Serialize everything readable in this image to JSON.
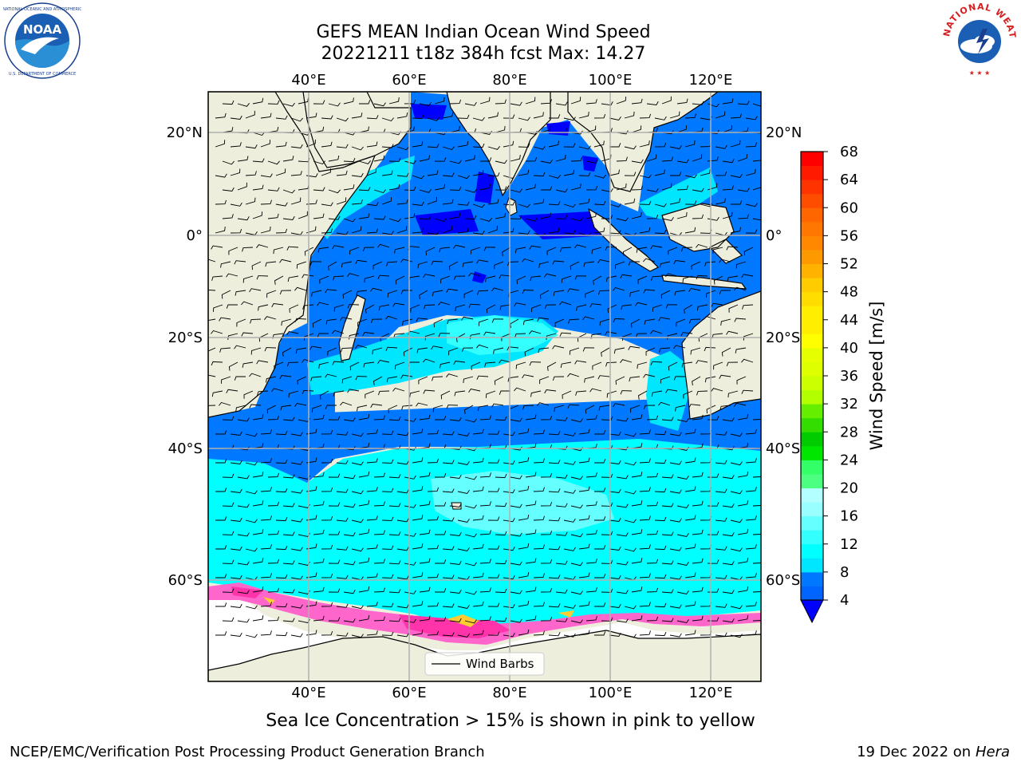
{
  "header": {
    "title_line1": "GEFS MEAN Indian Ocean Wind Speed",
    "title_line2": "20221211 t18z 384h fcst   Max: 14.27"
  },
  "logos": {
    "left": {
      "text": "NOAA",
      "ring_text": "NATIONAL OCEANIC AND ATMOSPHERIC ADMINISTRATION · U.S. DEPARTMENT OF COMMERCE",
      "icon": "noaa-logo"
    },
    "right": {
      "ring_text": "NATIONAL WEATHER SERVICE",
      "icon": "nws-logo"
    }
  },
  "map": {
    "lon_ticks": [
      "40°E",
      "60°E",
      "80°E",
      "100°E",
      "120°E"
    ],
    "lat_ticks": [
      "20°N",
      "0°",
      "20°S",
      "40°S",
      "60°S"
    ],
    "legend_label": "Wind Barbs",
    "colors": {
      "land": "#eeeedd",
      "sea_ice_white": "#ffffff",
      "sea_ice_pink": "#ff66cc",
      "sea_ice_magenta": "#ff33aa",
      "sea_ice_yellow": "#ffcc33",
      "grid": "#b0b0b0"
    }
  },
  "colorbar": {
    "label": "Wind Speed [m/s]",
    "ticks": [
      "4",
      "8",
      "12",
      "16",
      "20",
      "24",
      "28",
      "32",
      "36",
      "40",
      "44",
      "48",
      "52",
      "56",
      "60",
      "64",
      "68"
    ],
    "bins": [
      {
        "from": 4,
        "to": 6,
        "color": "#0064ff"
      },
      {
        "from": 6,
        "to": 8,
        "color": "#0078ff"
      },
      {
        "from": 8,
        "to": 10,
        "color": "#00e6ff"
      },
      {
        "from": 10,
        "to": 12,
        "color": "#00ffff"
      },
      {
        "from": 12,
        "to": 14,
        "color": "#33ffff"
      },
      {
        "from": 14,
        "to": 16,
        "color": "#66ffff"
      },
      {
        "from": 16,
        "to": 18,
        "color": "#99ffff"
      },
      {
        "from": 18,
        "to": 20,
        "color": "#b3ffff"
      },
      {
        "from": 20,
        "to": 22,
        "color": "#4cff80"
      },
      {
        "from": 22,
        "to": 24,
        "color": "#33ff66"
      },
      {
        "from": 24,
        "to": 26,
        "color": "#00e600"
      },
      {
        "from": 26,
        "to": 28,
        "color": "#00cc00"
      },
      {
        "from": 28,
        "to": 30,
        "color": "#33dd00"
      },
      {
        "from": 30,
        "to": 32,
        "color": "#66ee00"
      },
      {
        "from": 32,
        "to": 34,
        "color": "#b3ff00"
      },
      {
        "from": 34,
        "to": 36,
        "color": "#ccff00"
      },
      {
        "from": 36,
        "to": 38,
        "color": "#ddff00"
      },
      {
        "from": 38,
        "to": 40,
        "color": "#e6ff00"
      },
      {
        "from": 40,
        "to": 42,
        "color": "#ffff00"
      },
      {
        "from": 42,
        "to": 44,
        "color": "#ffee00"
      },
      {
        "from": 44,
        "to": 46,
        "color": "#ffee00"
      },
      {
        "from": 46,
        "to": 48,
        "color": "#ffdd00"
      },
      {
        "from": 48,
        "to": 50,
        "color": "#ffcc00"
      },
      {
        "from": 50,
        "to": 52,
        "color": "#ffb300"
      },
      {
        "from": 52,
        "to": 54,
        "color": "#ff9900"
      },
      {
        "from": 54,
        "to": 56,
        "color": "#ff8800"
      },
      {
        "from": 56,
        "to": 58,
        "color": "#ff7700"
      },
      {
        "from": 58,
        "to": 60,
        "color": "#ff6600"
      },
      {
        "from": 60,
        "to": 62,
        "color": "#ff4d00"
      },
      {
        "from": 62,
        "to": 64,
        "color": "#ff3300"
      },
      {
        "from": 64,
        "to": 66,
        "color": "#ff1a00"
      },
      {
        "from": 66,
        "to": 68,
        "color": "#ff0000"
      }
    ],
    "under_color": "#0000ff"
  },
  "captions": {
    "sea_ice_note": "Sea Ice Concentration > 15% is shown in pink to yellow",
    "credit": "NCEP/EMC/Verification Post Processing Product Generation Branch",
    "date": "19 Dec 2022 on",
    "machine": "Hera"
  }
}
